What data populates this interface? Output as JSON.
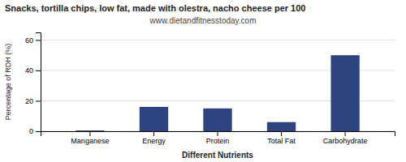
{
  "chart_data": {
    "type": "bar",
    "title": "Snacks, tortilla chips, low fat, made with olestra, nacho cheese per 100",
    "subtitle": "www.dietandfitnesstoday.com",
    "xlabel": "Different Nutrients",
    "ylabel": "Percentage of RDH (%)",
    "categories": [
      "Manganese",
      "Energy",
      "Protein",
      "Total Fat",
      "Carbohydrate"
    ],
    "values": [
      0.5,
      16,
      15,
      6,
      50
    ],
    "color": "#2e4480",
    "ylim": [
      0,
      65
    ],
    "yticks": [
      0,
      20,
      40,
      60
    ],
    "grid": true
  }
}
